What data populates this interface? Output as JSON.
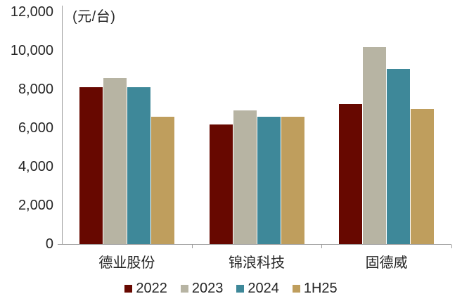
{
  "unit_label": "(元/台)",
  "colors": {
    "axis": "#9b9b9b",
    "text": "#262626",
    "series_2022": "#670800",
    "series_2023": "#B7B4A3",
    "series_2024": "#3E8899",
    "series_1H25": "#BF9E5D"
  },
  "chart_data": {
    "type": "bar",
    "title": "",
    "ylabel": "(元/台)",
    "xlabel": "",
    "categories": [
      "德业股份",
      "锦浪科技",
      "固德威"
    ],
    "series": [
      {
        "name": "2022",
        "color": "#670800",
        "values": [
          8100,
          6200,
          7250
        ]
      },
      {
        "name": "2023",
        "color": "#B7B4A3",
        "values": [
          8600,
          6900,
          10200
        ]
      },
      {
        "name": "2024",
        "color": "#3E8899",
        "values": [
          8100,
          6600,
          9050
        ]
      },
      {
        "name": "1H25",
        "color": "#BF9E5D",
        "values": [
          6600,
          6600,
          7000
        ]
      }
    ],
    "ylim": [
      0,
      12000
    ],
    "ytick_step": 2000,
    "ytick_labels": [
      "0",
      "2,000",
      "4,000",
      "6,000",
      "8,000",
      "10,000",
      "12,000"
    ],
    "grid": false,
    "legend_position": "bottom"
  }
}
